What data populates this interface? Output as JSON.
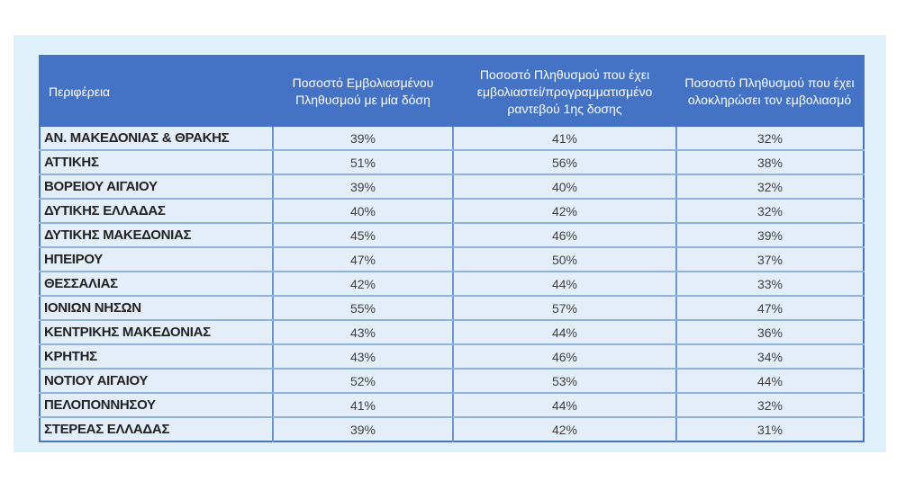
{
  "chart_data": {
    "type": "table",
    "columns": [
      "Περιφέρεια",
      "Ποσοστό Εμβολιασμένου Πληθυσμού με μία δόση",
      "Ποσοστό Πληθυσμού  που έχει εμβολιαστεί/προγραμματισμένο ραντεβού 1ης δοσης",
      "Ποσοστό Πληθυσμού που έχει ολοκληρώσει τον εμβολιασμό"
    ],
    "rows": [
      [
        "ΑΝ. ΜΑΚΕΔΟΝΙΑΣ & ΘΡΑΚΗΣ",
        "39%",
        "41%",
        "32%"
      ],
      [
        "ΑΤΤΙΚΗΣ",
        "51%",
        "56%",
        "38%"
      ],
      [
        "ΒΟΡΕΙΟΥ ΑΙΓΑΙΟΥ",
        "39%",
        "40%",
        "32%"
      ],
      [
        "ΔΥΤΙΚΗΣ ΕΛΛΑΔΑΣ",
        "40%",
        "42%",
        "32%"
      ],
      [
        "ΔΥΤΙΚΗΣ ΜΑΚΕΔΟΝΙΑΣ",
        "45%",
        "46%",
        "39%"
      ],
      [
        "ΗΠΕΙΡΟΥ",
        "47%",
        "50%",
        "37%"
      ],
      [
        "ΘΕΣΣΑΛΙΑΣ",
        "42%",
        "44%",
        "33%"
      ],
      [
        "ΙΟΝΙΩΝ ΝΗΣΩΝ",
        "55%",
        "57%",
        "47%"
      ],
      [
        "ΚΕΝΤΡΙΚΗΣ ΜΑΚΕΔΟΝΙΑΣ",
        "43%",
        "44%",
        "36%"
      ],
      [
        "ΚΡΗΤΗΣ",
        "43%",
        "46%",
        "34%"
      ],
      [
        "ΝΟΤΙΟΥ ΑΙΓΑΙΟΥ",
        "52%",
        "53%",
        "44%"
      ],
      [
        "ΠΕΛΟΠΟΝΝΗΣΟΥ",
        "41%",
        "44%",
        "32%"
      ],
      [
        "ΣΤΕΡΕΑΣ ΕΛΛΑΔΑΣ",
        "39%",
        "42%",
        "31%"
      ]
    ],
    "layout": {
      "legend": "none",
      "grid": "on",
      "header_position": "top"
    },
    "colors": {
      "header_bg": "#4472c5",
      "header_text": "#ffffff",
      "row_bg": "#e4eef9",
      "panel_bg": "#e0f0fa",
      "border_vertical": "#6d97ce",
      "border_horizontal": "#8fb2de",
      "outer_border": "#4674be",
      "region_text": "#222222",
      "value_text": "#3f3f3f"
    }
  }
}
